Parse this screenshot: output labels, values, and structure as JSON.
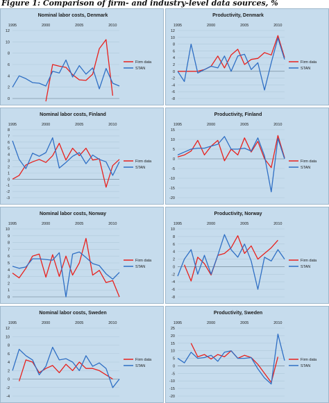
{
  "figure_title": "Figure 1: Comparison of firm- and industry-level data sources, %",
  "colors": {
    "panel_background": "#c6dced",
    "panel_border": "#9fb8cb",
    "gridline": "#b0c8da",
    "firm_series": "#e8201c",
    "stan_series": "#2f6fc4",
    "text": "#1a1a1a"
  },
  "legend": {
    "placement": "right"
  },
  "chart_data": [
    {
      "type": "line",
      "title": "Nominal labor costs, Denmark",
      "xlabel": "",
      "ylabel": "",
      "xlim": [
        1995,
        2011
      ],
      "ylim": [
        0,
        12
      ],
      "x_ticks": [
        "1995",
        "2000",
        "2005",
        "2010"
      ],
      "y_ticks": [
        0,
        2,
        4,
        6,
        8,
        10,
        12
      ],
      "grid": true,
      "series": [
        {
          "name": "Firm data",
          "color": "#e8201c",
          "x": [
            2000,
            2001,
            2002,
            2003,
            2004,
            2005,
            2006,
            2007,
            2008,
            2009,
            2010
          ],
          "values": [
            -0.5,
            6,
            5.7,
            5.5,
            4.2,
            3.3,
            3.2,
            4.3,
            8.8,
            10.4,
            0.5
          ]
        },
        {
          "name": "STAN",
          "color": "#2f6fc4",
          "x": [
            1995,
            1996,
            1997,
            1998,
            1999,
            2000,
            2001,
            2002,
            2003,
            2004,
            2005,
            2006,
            2007,
            2008,
            2009,
            2010,
            2011
          ],
          "values": [
            2,
            4,
            3.5,
            2.8,
            2.7,
            2.2,
            4.8,
            4.5,
            6.8,
            3.8,
            5.8,
            4.3,
            5.4,
            1.7,
            5.3,
            2.7,
            2.2
          ]
        }
      ]
    },
    {
      "type": "line",
      "title": "Productivity, Denmark",
      "xlabel": "",
      "ylabel": "",
      "xlim": [
        1995,
        2011
      ],
      "ylim": [
        -8,
        12
      ],
      "x_ticks": [
        "1995",
        "2000",
        "2005",
        "2010"
      ],
      "y_ticks": [
        -8,
        -6,
        -4,
        -2,
        0,
        2,
        4,
        6,
        8,
        10,
        12
      ],
      "grid": true,
      "series": [
        {
          "name": "Firm data",
          "color": "#e8201c",
          "x": [
            1995,
            1996,
            1997,
            1998,
            1999,
            2000,
            2001,
            2002,
            2003,
            2004,
            2005,
            2006,
            2007,
            2008,
            2009,
            2010,
            2011
          ],
          "values": [
            0,
            0,
            0,
            0,
            0.5,
            1.5,
            4.5,
            1,
            4.8,
            6.5,
            2,
            3.5,
            3.8,
            5.5,
            4.8,
            10.5,
            4
          ]
        },
        {
          "name": "STAN",
          "color": "#2f6fc4",
          "x": [
            1995,
            1996,
            1997,
            1998,
            1999,
            2000,
            2001,
            2002,
            2003,
            2004,
            2005,
            2006,
            2007,
            2008,
            2009,
            2010,
            2011
          ],
          "values": [
            0,
            -3,
            8,
            -0.5,
            0.5,
            1.5,
            1,
            4.5,
            0,
            4.5,
            5,
            0.5,
            2.5,
            -5.5,
            2.5,
            9.8,
            3.5
          ]
        }
      ]
    },
    {
      "type": "line",
      "title": "Nominal labor costs, Finland",
      "xlabel": "",
      "ylabel": "",
      "xlim": [
        1995,
        2011
      ],
      "ylim": [
        -3,
        8
      ],
      "x_ticks": [
        "1995",
        "2000",
        "2005",
        "2010"
      ],
      "y_ticks": [
        -3,
        -2,
        -1,
        0,
        1,
        2,
        3,
        4,
        5,
        6,
        7,
        8
      ],
      "grid": true,
      "series": [
        {
          "name": "Firm data",
          "color": "#e8201c",
          "x": [
            1995,
            1996,
            1997,
            1998,
            1999,
            2000,
            2001,
            2002,
            2003,
            2004,
            2005,
            2006,
            2007,
            2008,
            2009,
            2010,
            2011
          ],
          "values": [
            0,
            0.6,
            2.3,
            2.8,
            3.2,
            2.7,
            3.8,
            5.8,
            3.1,
            5,
            3.8,
            5,
            3.1,
            3.3,
            -1.3,
            2.2,
            3.2
          ]
        },
        {
          "name": "STAN",
          "color": "#2f6fc4",
          "x": [
            1995,
            1996,
            1997,
            1998,
            1999,
            2000,
            2001,
            2002,
            2003,
            2004,
            2005,
            2006,
            2007,
            2008,
            2009,
            2010,
            2011
          ],
          "values": [
            6.2,
            3.2,
            1.7,
            4.2,
            3.7,
            4.3,
            6.7,
            1.8,
            2.7,
            3.7,
            4.3,
            2.5,
            3.9,
            3.2,
            2.8,
            0.6,
            2.8
          ]
        }
      ]
    },
    {
      "type": "line",
      "title": "Productivity, Finland",
      "xlabel": "",
      "ylabel": "",
      "xlim": [
        1995,
        2011
      ],
      "ylim": [
        -20,
        15
      ],
      "x_ticks": [
        "1995",
        "2000",
        "2005",
        "2010"
      ],
      "y_ticks": [
        -20,
        -15,
        -10,
        -5,
        0,
        5,
        10,
        15
      ],
      "grid": true,
      "series": [
        {
          "name": "Firm data",
          "color": "#e8201c",
          "x": [
            1995,
            1996,
            1997,
            1998,
            1999,
            2000,
            2001,
            2002,
            2003,
            2004,
            2005,
            2006,
            2007,
            2008,
            2009,
            2010,
            2011
          ],
          "values": [
            1,
            2,
            4,
            9.5,
            2,
            6.5,
            9.5,
            -1,
            5,
            2,
            10.8,
            3.5,
            9,
            0,
            -4.5,
            12,
            0.5
          ]
        },
        {
          "name": "STAN",
          "color": "#2f6fc4",
          "x": [
            1995,
            1996,
            1997,
            1998,
            1999,
            2000,
            2001,
            2002,
            2003,
            2004,
            2005,
            2006,
            2007,
            2008,
            2009,
            2010,
            2011
          ],
          "values": [
            2,
            3.5,
            5,
            5.5,
            5.5,
            6.5,
            7.5,
            11.5,
            5,
            5,
            5.5,
            4,
            10.8,
            1.5,
            -17,
            10.5,
            0
          ]
        }
      ]
    },
    {
      "type": "line",
      "title": "Nominal labor costs, Norway",
      "xlabel": "",
      "ylabel": "",
      "xlim": [
        1995,
        2011
      ],
      "ylim": [
        0,
        10
      ],
      "x_ticks": [
        "1995",
        "2000",
        "2005",
        "2010"
      ],
      "y_ticks": [
        0,
        1,
        2,
        3,
        4,
        5,
        6,
        7,
        8,
        9,
        10
      ],
      "grid": true,
      "series": [
        {
          "name": "Firm data",
          "color": "#e8201c",
          "x": [
            1995,
            1996,
            1997,
            1998,
            1999,
            2000,
            2001,
            2002,
            2003,
            2004,
            2005,
            2006,
            2007,
            2008,
            2009,
            2010,
            2011
          ],
          "values": [
            3.5,
            2.8,
            4.2,
            6,
            6.3,
            2.9,
            6.2,
            3,
            6,
            3.2,
            5,
            8.6,
            3.2,
            3.9,
            2.1,
            2.4,
            0
          ]
        },
        {
          "name": "STAN",
          "color": "#2f6fc4",
          "x": [
            1995,
            1996,
            1997,
            1998,
            1999,
            2000,
            2001,
            2002,
            2003,
            2004,
            2005,
            2006,
            2007,
            2008,
            2009,
            2010,
            2011
          ],
          "values": [
            4.5,
            4.2,
            4.4,
            5.6,
            5.6,
            5.5,
            5.4,
            6.5,
            0,
            6.3,
            6.6,
            5.8,
            4.9,
            4.6,
            3.4,
            2.6,
            3.6
          ]
        }
      ]
    },
    {
      "type": "line",
      "title": "Productivity, Norway",
      "xlabel": "",
      "ylabel": "",
      "xlim": [
        1995,
        2011
      ],
      "ylim": [
        -8,
        10
      ],
      "x_ticks": [
        "1995",
        "2000",
        "2005",
        "2010"
      ],
      "y_ticks": [
        -8,
        -6,
        -4,
        -2,
        0,
        2,
        4,
        6,
        8,
        10
      ],
      "grid": true,
      "series": [
        {
          "name": "Firm data",
          "color": "#e8201c",
          "x": [
            1996,
            1997,
            1998,
            1999,
            2000,
            2001,
            2002,
            2003,
            2004,
            2005,
            2006,
            2007,
            2008,
            2009,
            2010
          ],
          "values": [
            0.5,
            -3.8,
            2.5,
            0.8,
            -2.2,
            3,
            3.5,
            5,
            8.2,
            3.5,
            5.5,
            2,
            3.5,
            5,
            7
          ]
        },
        {
          "name": "STAN",
          "color": "#2f6fc4",
          "x": [
            1995,
            1996,
            1997,
            1998,
            1999,
            2000,
            2001,
            2002,
            2003,
            2004,
            2005,
            2006,
            2007,
            2008,
            2009,
            2010,
            2011
          ],
          "values": [
            -2.5,
            2,
            4.5,
            -2,
            3,
            -2,
            3,
            8.5,
            4.5,
            2.5,
            6,
            1.5,
            -6,
            2.5,
            1.5,
            4.5,
            2
          ]
        }
      ]
    },
    {
      "type": "line",
      "title": "Nominal labor costs, Sweden",
      "xlabel": "",
      "ylabel": "",
      "xlim": [
        1995,
        2011
      ],
      "ylim": [
        -4,
        12
      ],
      "x_ticks": [
        "1995",
        "2000",
        "2005",
        "2010"
      ],
      "y_ticks": [
        -4,
        -2,
        0,
        2,
        4,
        6,
        8,
        10,
        12
      ],
      "grid": true,
      "series": [
        {
          "name": "Firm data",
          "color": "#e8201c",
          "x": [
            1996,
            1997,
            1998,
            1999,
            2000,
            2001,
            2002,
            2003,
            2004,
            2005,
            2006,
            2007,
            2008,
            2009,
            2010
          ],
          "values": [
            -0.5,
            4.5,
            4,
            1.5,
            2.5,
            3.2,
            1.5,
            3.5,
            2,
            4,
            2.5,
            2.5,
            2,
            1,
            0
          ]
        },
        {
          "name": "STAN",
          "color": "#2f6fc4",
          "x": [
            1995,
            1996,
            1997,
            1998,
            1999,
            2000,
            2001,
            2002,
            2003,
            2004,
            2005,
            2006,
            2007,
            2008,
            2009,
            2010,
            2011
          ],
          "values": [
            2,
            7,
            5.5,
            4.5,
            1,
            3,
            7.5,
            4.5,
            4.8,
            4,
            2,
            5.5,
            3,
            3.8,
            2.5,
            -2,
            0
          ]
        }
      ]
    },
    {
      "type": "line",
      "title": "Productivity, Sweden",
      "xlabel": "",
      "ylabel": "",
      "xlim": [
        1995,
        2011
      ],
      "ylim": [
        -20,
        25
      ],
      "x_ticks": [
        "1995",
        "2000",
        "2005",
        "2010"
      ],
      "y_ticks": [
        -20,
        -15,
        -10,
        -5,
        0,
        5,
        10,
        15,
        20,
        25
      ],
      "grid": true,
      "series": [
        {
          "name": "Firm data",
          "color": "#e8201c",
          "x": [
            1997,
            1998,
            1999,
            2000,
            2001,
            2002,
            2003,
            2004,
            2005,
            2006,
            2007,
            2008,
            2009,
            2010
          ],
          "values": [
            15,
            6,
            7.5,
            4.5,
            7.5,
            6,
            10,
            5,
            7,
            5.5,
            1,
            -5,
            -11,
            6
          ]
        },
        {
          "name": "STAN",
          "color": "#2f6fc4",
          "x": [
            1995,
            1996,
            1997,
            1998,
            1999,
            2000,
            2001,
            2002,
            2003,
            2004,
            2005,
            2006,
            2007,
            2008,
            2009,
            2010,
            2011
          ],
          "values": [
            5,
            2,
            9,
            5,
            5.5,
            7,
            3,
            9,
            10,
            5,
            5,
            5.5,
            -2,
            -8,
            -12,
            21,
            3.5
          ]
        }
      ]
    }
  ]
}
